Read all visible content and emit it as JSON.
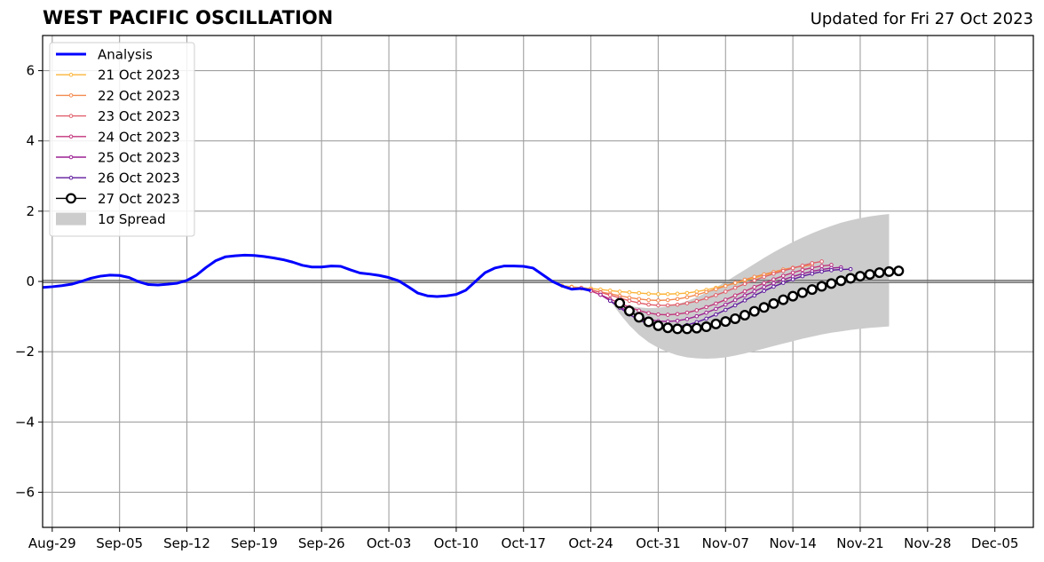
{
  "header": {
    "title": "WEST PACIFIC OSCILLATION",
    "updated": "Updated for Fri 27 Oct 2023"
  },
  "chart_data": {
    "type": "line",
    "title": "WEST PACIFIC OSCILLATION",
    "xlabel": "",
    "ylabel": "",
    "x_axis": {
      "type": "date",
      "range": [
        "2023-08-28",
        "2023-12-09"
      ],
      "ticks": [
        "2023-08-29",
        "2023-09-05",
        "2023-09-12",
        "2023-09-19",
        "2023-09-26",
        "2023-10-03",
        "2023-10-10",
        "2023-10-17",
        "2023-10-24",
        "2023-10-31",
        "2023-11-07",
        "2023-11-14",
        "2023-11-21",
        "2023-11-28",
        "2023-12-05"
      ],
      "tick_labels": [
        "Aug-29",
        "Sep-05",
        "Sep-12",
        "Sep-19",
        "Sep-26",
        "Oct-03",
        "Oct-10",
        "Oct-17",
        "Oct-24",
        "Oct-31",
        "Nov-07",
        "Nov-14",
        "Nov-21",
        "Nov-28",
        "Dec-05"
      ]
    },
    "y_axis": {
      "range": [
        -7,
        7
      ],
      "ticks": [
        -6,
        -4,
        -2,
        0,
        2,
        4,
        6
      ],
      "tick_labels": [
        "−6",
        "−4",
        "−2",
        "0",
        "2",
        "4",
        "6"
      ]
    },
    "grid": true,
    "legend": "top-left",
    "analysis": {
      "name": "Analysis",
      "color": "#0000ff",
      "points": [
        [
          "2023-08-28",
          -0.17
        ],
        [
          "2023-08-29",
          -0.15
        ],
        [
          "2023-08-30",
          -0.12
        ],
        [
          "2023-08-31",
          -0.08
        ],
        [
          "2023-09-01",
          0.0
        ],
        [
          "2023-09-02",
          0.09
        ],
        [
          "2023-09-03",
          0.15
        ],
        [
          "2023-09-04",
          0.18
        ],
        [
          "2023-09-05",
          0.17
        ],
        [
          "2023-09-06",
          0.11
        ],
        [
          "2023-09-07",
          -0.01
        ],
        [
          "2023-09-08",
          -0.09
        ],
        [
          "2023-09-09",
          -0.1
        ],
        [
          "2023-09-10",
          -0.08
        ],
        [
          "2023-09-11",
          -0.05
        ],
        [
          "2023-09-12",
          0.03
        ],
        [
          "2023-09-13",
          0.18
        ],
        [
          "2023-09-14",
          0.4
        ],
        [
          "2023-09-15",
          0.59
        ],
        [
          "2023-09-16",
          0.7
        ],
        [
          "2023-09-17",
          0.73
        ],
        [
          "2023-09-18",
          0.75
        ],
        [
          "2023-09-19",
          0.74
        ],
        [
          "2023-09-20",
          0.71
        ],
        [
          "2023-09-21",
          0.67
        ],
        [
          "2023-09-22",
          0.62
        ],
        [
          "2023-09-23",
          0.55
        ],
        [
          "2023-09-24",
          0.46
        ],
        [
          "2023-09-25",
          0.41
        ],
        [
          "2023-09-26",
          0.41
        ],
        [
          "2023-09-27",
          0.44
        ],
        [
          "2023-09-28",
          0.43
        ],
        [
          "2023-09-29",
          0.33
        ],
        [
          "2023-09-30",
          0.24
        ],
        [
          "2023-10-01",
          0.21
        ],
        [
          "2023-10-02",
          0.17
        ],
        [
          "2023-10-03",
          0.11
        ],
        [
          "2023-10-04",
          0.02
        ],
        [
          "2023-10-05",
          -0.15
        ],
        [
          "2023-10-06",
          -0.33
        ],
        [
          "2023-10-07",
          -0.41
        ],
        [
          "2023-10-08",
          -0.43
        ],
        [
          "2023-10-09",
          -0.41
        ],
        [
          "2023-10-10",
          -0.37
        ],
        [
          "2023-10-11",
          -0.25
        ],
        [
          "2023-10-12",
          0.0
        ],
        [
          "2023-10-13",
          0.25
        ],
        [
          "2023-10-14",
          0.38
        ],
        [
          "2023-10-15",
          0.44
        ],
        [
          "2023-10-16",
          0.44
        ],
        [
          "2023-10-17",
          0.43
        ],
        [
          "2023-10-18",
          0.38
        ],
        [
          "2023-10-19",
          0.19
        ],
        [
          "2023-10-20",
          0.0
        ],
        [
          "2023-10-21",
          -0.13
        ],
        [
          "2023-10-22",
          -0.22
        ],
        [
          "2023-10-23",
          -0.2
        ],
        [
          "2023-10-24",
          -0.26
        ]
      ]
    },
    "forecasts": [
      {
        "name": "21 Oct 2023",
        "color": "#fbb43a",
        "start": "2023-10-21",
        "values": [
          -0.12,
          -0.15,
          -0.18,
          -0.2,
          -0.23,
          -0.26,
          -0.29,
          -0.31,
          -0.33,
          -0.35,
          -0.36,
          -0.36,
          -0.35,
          -0.33,
          -0.29,
          -0.24,
          -0.18,
          -0.12,
          -0.05,
          0.03,
          0.1,
          0.18,
          0.25,
          0.32,
          0.38,
          0.44
        ]
      },
      {
        "name": "22 Oct 2023",
        "color": "#f3894f",
        "start": "2023-10-22",
        "values": [
          -0.16,
          -0.2,
          -0.25,
          -0.3,
          -0.35,
          -0.41,
          -0.46,
          -0.5,
          -0.53,
          -0.54,
          -0.53,
          -0.5,
          -0.45,
          -0.38,
          -0.3,
          -0.22,
          -0.13,
          -0.04,
          0.05,
          0.13,
          0.2,
          0.27,
          0.34,
          0.39,
          0.43,
          0.47
        ]
      },
      {
        "name": "23 Oct 2023",
        "color": "#e15f6b",
        "start": "2023-10-23",
        "values": [
          -0.18,
          -0.24,
          -0.31,
          -0.39,
          -0.47,
          -0.55,
          -0.61,
          -0.66,
          -0.68,
          -0.68,
          -0.66,
          -0.62,
          -0.56,
          -0.48,
          -0.39,
          -0.29,
          -0.18,
          -0.07,
          0.03,
          0.13,
          0.22,
          0.3,
          0.38,
          0.45,
          0.52,
          0.57
        ]
      },
      {
        "name": "24 Oct 2023",
        "color": "#c2357c",
        "start": "2023-10-24",
        "values": [
          -0.27,
          -0.38,
          -0.5,
          -0.62,
          -0.73,
          -0.83,
          -0.9,
          -0.94,
          -0.95,
          -0.93,
          -0.89,
          -0.82,
          -0.73,
          -0.63,
          -0.52,
          -0.4,
          -0.28,
          -0.16,
          -0.05,
          0.06,
          0.16,
          0.25,
          0.33,
          0.39,
          0.44,
          0.47
        ]
      },
      {
        "name": "25 Oct 2023",
        "color": "#9b2193",
        "start": "2023-10-25",
        "values": [
          -0.38,
          -0.55,
          -0.72,
          -0.87,
          -0.99,
          -1.08,
          -1.13,
          -1.14,
          -1.12,
          -1.07,
          -0.99,
          -0.89,
          -0.78,
          -0.66,
          -0.53,
          -0.4,
          -0.28,
          -0.16,
          -0.05,
          0.05,
          0.14,
          0.22,
          0.29,
          0.34,
          0.38,
          0.4
        ]
      },
      {
        "name": "26 Oct 2023",
        "color": "#5f1a9c",
        "start": "2023-10-26",
        "values": [
          -0.55,
          -0.75,
          -0.94,
          -1.1,
          -1.21,
          -1.28,
          -1.3,
          -1.29,
          -1.24,
          -1.16,
          -1.06,
          -0.94,
          -0.81,
          -0.68,
          -0.54,
          -0.4,
          -0.27,
          -0.15,
          -0.04,
          0.06,
          0.15,
          0.22,
          0.28,
          0.32,
          0.34,
          0.35
        ]
      },
      {
        "name": "27 Oct 2023",
        "color": "#000000",
        "start": "2023-10-27",
        "values": [
          -0.62,
          -0.84,
          -1.02,
          -1.15,
          -1.26,
          -1.32,
          -1.35,
          -1.35,
          -1.33,
          -1.29,
          -1.21,
          -1.14,
          -1.06,
          -0.96,
          -0.85,
          -0.74,
          -0.63,
          -0.52,
          -0.42,
          -0.32,
          -0.23,
          -0.14,
          -0.06,
          0.02,
          0.09,
          0.15,
          0.2,
          0.25,
          0.28,
          0.3
        ]
      }
    ],
    "spread": {
      "name": "1σ Spread",
      "color": "#cccccc",
      "start": "2023-10-26",
      "upper": [
        -0.55,
        -0.62,
        -0.7,
        -0.74,
        -0.76,
        -0.75,
        -0.71,
        -0.65,
        -0.56,
        -0.45,
        -0.32,
        -0.17,
        -0.01,
        0.16,
        0.33,
        0.5,
        0.67,
        0.83,
        0.98,
        1.12,
        1.25,
        1.37,
        1.48,
        1.58,
        1.67,
        1.74,
        1.8,
        1.85,
        1.89,
        1.92
      ],
      "lower": [
        -0.55,
        -0.92,
        -1.25,
        -1.52,
        -1.73,
        -1.89,
        -2.01,
        -2.1,
        -2.16,
        -2.19,
        -2.2,
        -2.19,
        -2.16,
        -2.11,
        -2.05,
        -1.98,
        -1.91,
        -1.84,
        -1.77,
        -1.7,
        -1.63,
        -1.57,
        -1.51,
        -1.46,
        -1.42,
        -1.38,
        -1.35,
        -1.32,
        -1.3,
        -1.28
      ]
    }
  }
}
